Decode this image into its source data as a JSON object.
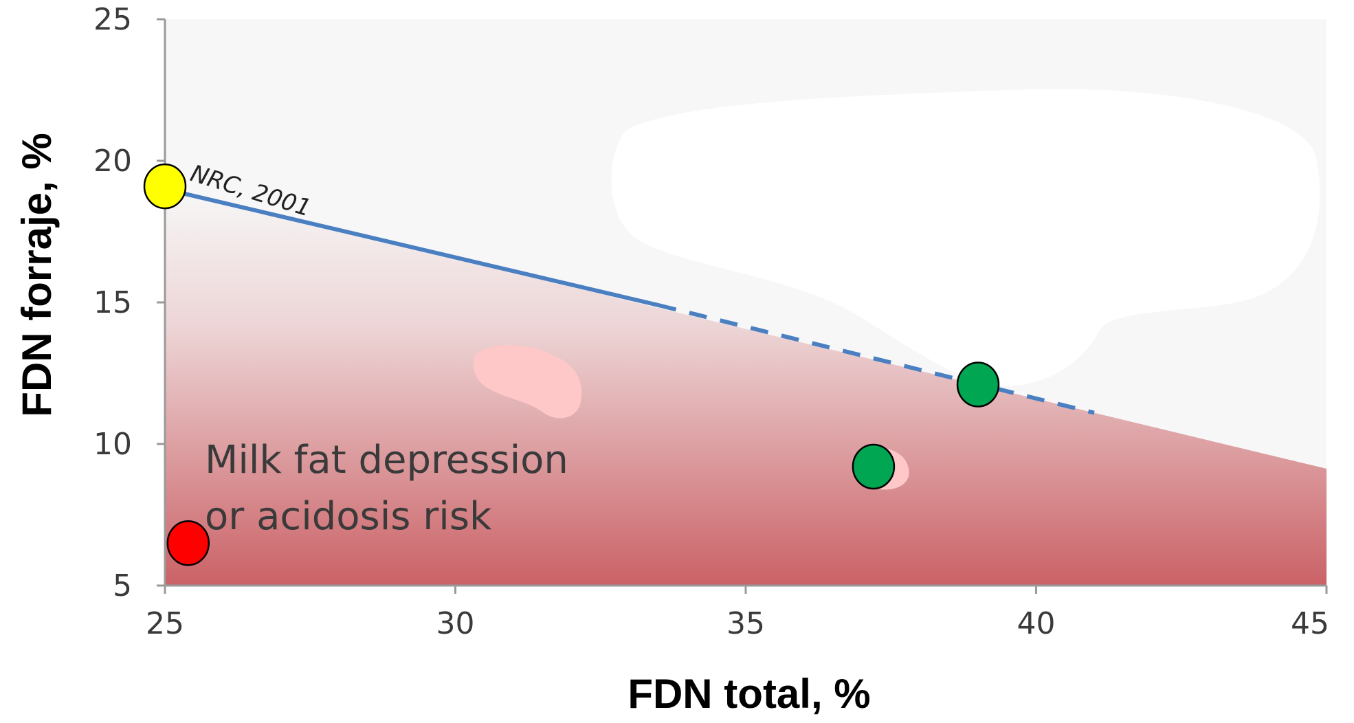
{
  "chart_data": {
    "type": "scatter",
    "xlabel": "FDN total, %",
    "ylabel": "FDN forraje, %",
    "xlim": [
      25,
      45
    ],
    "ylim": [
      5,
      25
    ],
    "xticks": [
      "25",
      "30",
      "35",
      "40",
      "45"
    ],
    "yticks": [
      "5",
      "10",
      "15",
      "20",
      "25"
    ],
    "grid": false,
    "reference_line": {
      "label": "NRC, 2001",
      "solid": {
        "x": [
          25,
          33.5
        ],
        "y": [
          19,
          14.9
        ]
      },
      "dashed": {
        "x": [
          33.5,
          41
        ],
        "y": [
          14.9,
          11.1
        ]
      },
      "color": "#4a7fc1"
    },
    "risk_region": {
      "label_lines": [
        "Milk fat depression",
        "or acidosis risk"
      ],
      "color": "#c85a5f"
    },
    "points": [
      {
        "x": 25.0,
        "y": 19.1,
        "color": "#ffff00"
      },
      {
        "x": 25.4,
        "y": 6.5,
        "color": "#ff0000"
      },
      {
        "x": 37.2,
        "y": 9.2,
        "color": "#00a651"
      },
      {
        "x": 39.0,
        "y": 12.1,
        "color": "#00a651"
      }
    ]
  }
}
